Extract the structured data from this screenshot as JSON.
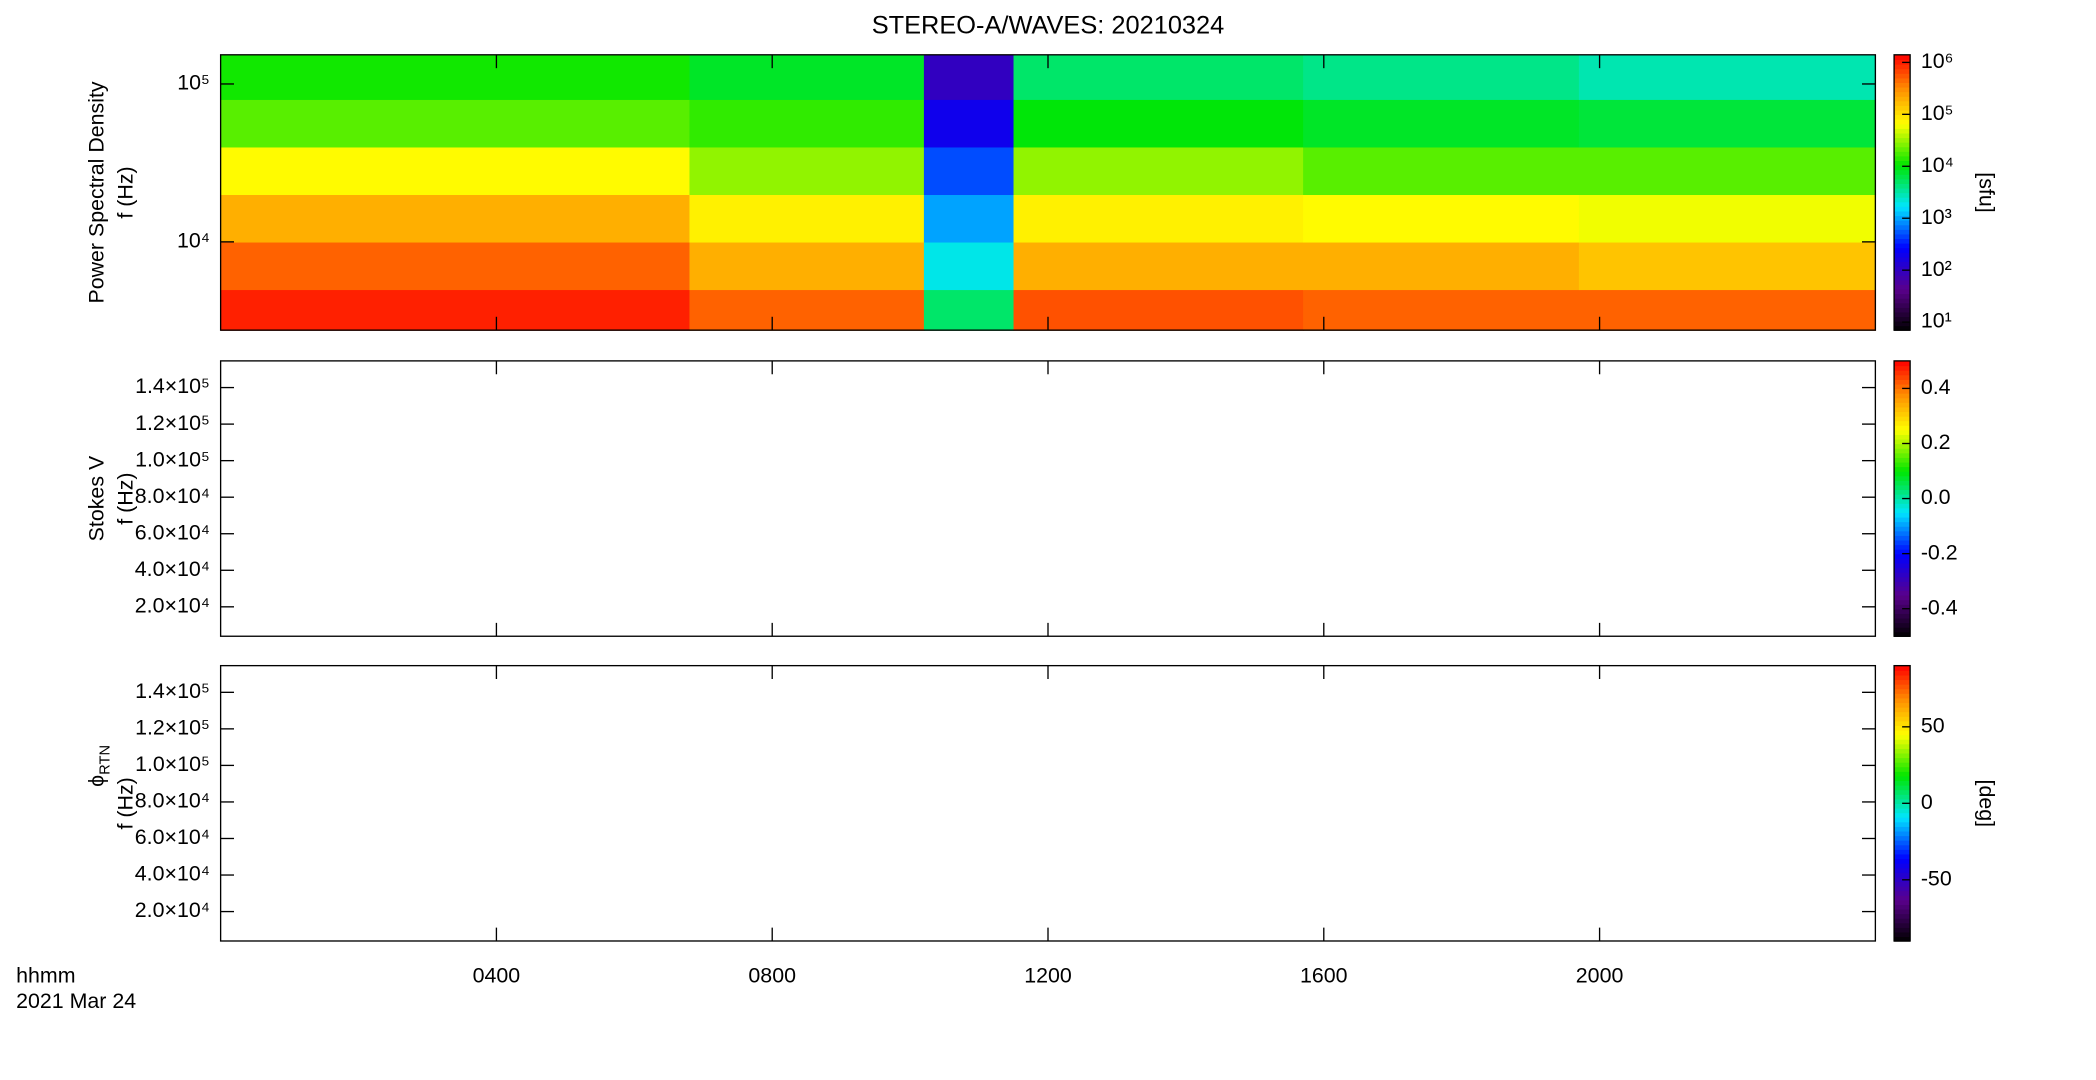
{
  "chart_data": [
    {
      "type": "heatmap",
      "title": "STEREO-A/WAVES: 20210324",
      "ylabel": [
        "Power Spectral Density",
        "f (Hz)"
      ],
      "clabel": "[sfu]",
      "xlim": [
        0,
        24
      ],
      "xticks": [
        4,
        8,
        12,
        16,
        20
      ],
      "ylog": true,
      "ylim": [
        2760,
        153000
      ],
      "yticks": [
        {
          "value": 10000,
          "label": "10⁴"
        },
        {
          "value": 100000,
          "label": "10⁵"
        }
      ],
      "clog": true,
      "clim": [
        7,
        1400000
      ],
      "cticks": [
        {
          "value": 10,
          "label": "10¹"
        },
        {
          "value": 100,
          "label": "10²"
        },
        {
          "value": 1000,
          "label": "10³"
        },
        {
          "value": 10000,
          "label": "10⁴"
        },
        {
          "value": 100000,
          "label": "10⁵"
        },
        {
          "value": 1000000,
          "label": "10⁶"
        }
      ],
      "x_edges": [
        0,
        6.8,
        10.2,
        11.5,
        15.7,
        19.7,
        24
      ],
      "y_edges": [
        2760,
        5000,
        10000,
        20000,
        40000,
        80000,
        153000
      ],
      "values": [
        [
          1000000,
          500000,
          5000,
          600000,
          500000,
          500000
        ],
        [
          500000,
          200000,
          2000,
          200000,
          200000,
          150000
        ],
        [
          200000,
          80000,
          1000,
          80000,
          70000,
          60000
        ],
        [
          70000,
          30000,
          500,
          30000,
          20000,
          20000
        ],
        [
          20000,
          15000,
          200,
          10000,
          8000,
          7000
        ],
        [
          12000,
          8000,
          100,
          5000,
          4000,
          3000
        ]
      ]
    },
    {
      "type": "heatmap",
      "ylabel": [
        "Stokes V",
        "f (Hz)"
      ],
      "xlim": [
        0,
        24
      ],
      "xticks": [
        4,
        8,
        12,
        16,
        20
      ],
      "ylim": [
        3900,
        154600
      ],
      "yticks": [
        {
          "value": 20000,
          "label": "2.0×10⁴"
        },
        {
          "value": 40000,
          "label": "4.0×10⁴"
        },
        {
          "value": 60000,
          "label": "6.0×10⁴"
        },
        {
          "value": 80000,
          "label": "8.0×10⁴"
        },
        {
          "value": 100000,
          "label": "1.0×10⁵"
        },
        {
          "value": 120000,
          "label": "1.2×10⁵"
        },
        {
          "value": 140000,
          "label": "1.4×10⁵"
        }
      ],
      "clim": [
        -0.5,
        0.5
      ],
      "cticks": [
        -0.4,
        -0.2,
        {
          "value": 0,
          "label": "0.0"
        },
        0.2,
        0.4
      ]
    },
    {
      "type": "heatmap",
      "ylabel_symbol": "ϕ",
      "ylabel_sub": "RTN",
      "ylabel": [
        "f (Hz)"
      ],
      "clabel": "[deg]",
      "xlabel": "hhmm",
      "date": "2021 Mar 24",
      "xlim": [
        0,
        24
      ],
      "xticks": [
        {
          "value": 4,
          "label": "0400"
        },
        {
          "value": 8,
          "label": "0800"
        },
        {
          "value": 12,
          "label": "1200"
        },
        {
          "value": 16,
          "label": "1600"
        },
        {
          "value": 20,
          "label": "2000"
        }
      ],
      "ylim": [
        3900,
        154600
      ],
      "yticks": [
        {
          "value": 20000,
          "label": "2.0×10⁴"
        },
        {
          "value": 40000,
          "label": "4.0×10⁴"
        },
        {
          "value": 60000,
          "label": "6.0×10⁴"
        },
        {
          "value": 80000,
          "label": "8.0×10⁴"
        },
        {
          "value": 100000,
          "label": "1.0×10⁵"
        },
        {
          "value": 120000,
          "label": "1.2×10⁵"
        },
        {
          "value": 140000,
          "label": "1.4×10⁵"
        }
      ],
      "clim": [
        -90,
        90
      ],
      "cticks": [
        -50,
        0,
        50
      ]
    }
  ]
}
